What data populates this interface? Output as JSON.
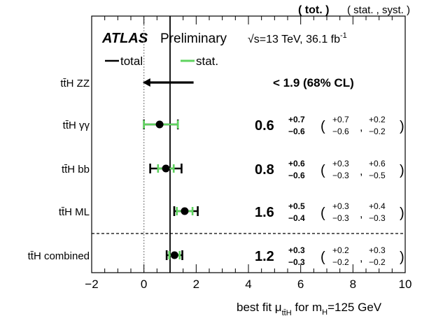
{
  "chart_data": {
    "type": "scatter",
    "experiment": "ATLAS",
    "status": "Preliminary",
    "energy": "√s=13 TeV, 36.1 fb",
    "energy_sup": "-1",
    "header_tot": "( tot. )",
    "header_statsyst": "( stat. , syst. )",
    "legend": [
      {
        "name": "total",
        "color": "#000000"
      },
      {
        "name": "stat.",
        "color": "#5fd35f"
      }
    ],
    "xlabel_pre": "best fit μ",
    "xlabel_sub": "tt̄H",
    "xlabel_mid": " for m",
    "xlabel_sub2": "H",
    "xlabel_post": "=125 GeV",
    "xlim": [
      -2,
      10
    ],
    "xticks": [
      "−2",
      "0",
      "2",
      "4",
      "6",
      "8",
      "10"
    ],
    "reference_lines": [
      0,
      1
    ],
    "categories": [
      {
        "label": "tt̄H ZZ",
        "limit_text": "< 1.9 (68% CL)",
        "limit_arrow": {
          "from": 1.9,
          "to": -0.05
        }
      },
      {
        "label": "tt̄H γγ",
        "value": 0.6,
        "value_text": "0.6",
        "tot_up": "+0.7",
        "tot_dn": "−0.6",
        "stat_up": "+0.7",
        "stat_dn": "−0.6",
        "syst_up": "+0.2",
        "syst_dn": "−0.2",
        "tot": [
          -0.0,
          1.3
        ],
        "stat": [
          -0.0,
          1.3
        ]
      },
      {
        "label": "tt̄H bb",
        "value": 0.84,
        "value_text": "0.8",
        "tot_up": "+0.6",
        "tot_dn": "−0.6",
        "stat_up": "+0.3",
        "stat_dn": "−0.3",
        "syst_up": "+0.6",
        "syst_dn": "−0.5",
        "tot": [
          0.24,
          1.44
        ],
        "stat": [
          0.54,
          1.14
        ]
      },
      {
        "label": "tt̄H ML",
        "value": 1.56,
        "value_text": "1.6",
        "tot_up": "+0.5",
        "tot_dn": "−0.4",
        "stat_up": "+0.3",
        "stat_dn": "−0.3",
        "syst_up": "+0.4",
        "syst_dn": "−0.3",
        "tot": [
          1.16,
          2.06
        ],
        "stat": [
          1.26,
          1.86
        ]
      },
      {
        "label": "tt̄H combined",
        "value": 1.17,
        "value_text": "1.2",
        "tot_up": "+0.3",
        "tot_dn": "−0.3",
        "stat_up": "+0.2",
        "stat_dn": "−0.2",
        "syst_up": "+0.3",
        "syst_dn": "−0.2",
        "tot": [
          0.87,
          1.47
        ],
        "stat": [
          0.97,
          1.37
        ]
      }
    ]
  }
}
